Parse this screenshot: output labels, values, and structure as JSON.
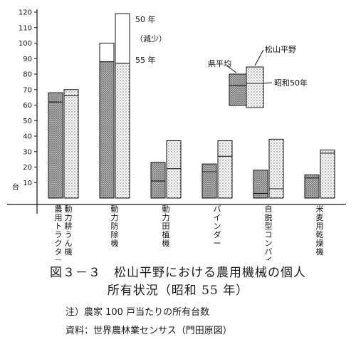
{
  "chart_data": {
    "type": "bar",
    "ylabel": "台",
    "ylim": [
      0,
      120
    ],
    "yticks": [
      10,
      20,
      30,
      40,
      50,
      60,
      70,
      80,
      90,
      100,
      110,
      120
    ],
    "categories": [
      "動力耕うん機 ・ 農用トラクター",
      "動力防除機",
      "動力田植機",
      "バインダー",
      "自脱型コンバイン",
      "米麦用乾燥機"
    ],
    "series": [
      {
        "name": "県平均",
        "period": "昭和50年",
        "values": [
          62,
          88,
          11,
          17,
          3,
          13
        ]
      },
      {
        "name": "県平均",
        "period": "55年",
        "values": [
          68,
          100,
          23,
          22,
          18,
          15
        ]
      },
      {
        "name": "松山平野",
        "period": "昭和50年",
        "values": [
          66,
          87,
          19,
          27,
          6,
          29
        ]
      },
      {
        "name": "松山平野",
        "period": "55年",
        "values": [
          70,
          119,
          37,
          37,
          38,
          31
        ]
      }
    ],
    "annotations": [
      "50 年",
      "（減少）",
      "55 年"
    ],
    "legend": {
      "labels": [
        "県平均",
        "松山平野",
        "昭和50年"
      ],
      "position": "top-right"
    }
  },
  "caption": {
    "title": "図３－３　松山平野における農用機械の個人",
    "subtitle": "所有状況（昭和 55 年）",
    "note": "注）農家 100 戸当たりの所有台数",
    "source": "資料：世界農林業センサス（門田原図）"
  }
}
